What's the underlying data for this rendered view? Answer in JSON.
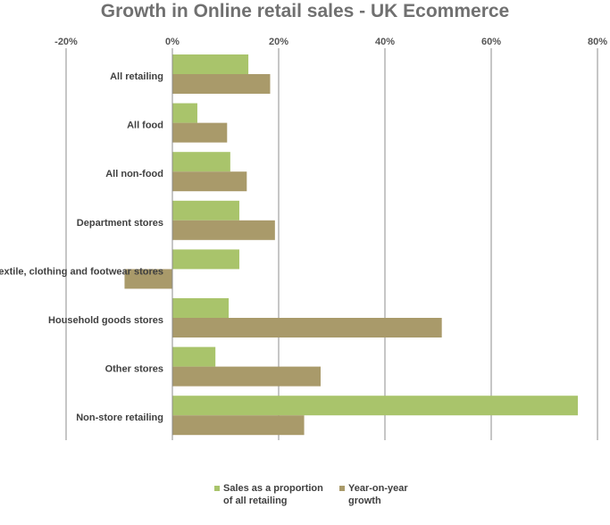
{
  "chart_data": {
    "type": "bar",
    "orientation": "horizontal",
    "title": "Growth in Online retail sales - UK Ecommerce",
    "xlim": [
      -20,
      80
    ],
    "ticks": [
      -20,
      0,
      20,
      40,
      60,
      80
    ],
    "tick_labels": [
      "-20%",
      "0%",
      "20%",
      "40%",
      "60%",
      "80%"
    ],
    "axis_position": "top",
    "grid": true,
    "legend_position": "bottom",
    "categories": [
      "All retailing",
      "All food",
      "All non-food",
      "Department stores",
      "Textile, clothing and footwear stores",
      "Household goods stores",
      "Other stores",
      "Non-store retailing"
    ],
    "series": [
      {
        "name": "Sales as a proportion of all retailing",
        "color": "#a9c46b",
        "values": [
          14.3,
          4.7,
          10.9,
          12.6,
          12.6,
          10.6,
          8.1,
          76.3
        ]
      },
      {
        "name": "Year-on-year growth",
        "color": "#a99a6a",
        "values": [
          18.4,
          10.3,
          14.0,
          19.3,
          -9.0,
          50.7,
          27.9,
          24.8
        ]
      }
    ]
  }
}
